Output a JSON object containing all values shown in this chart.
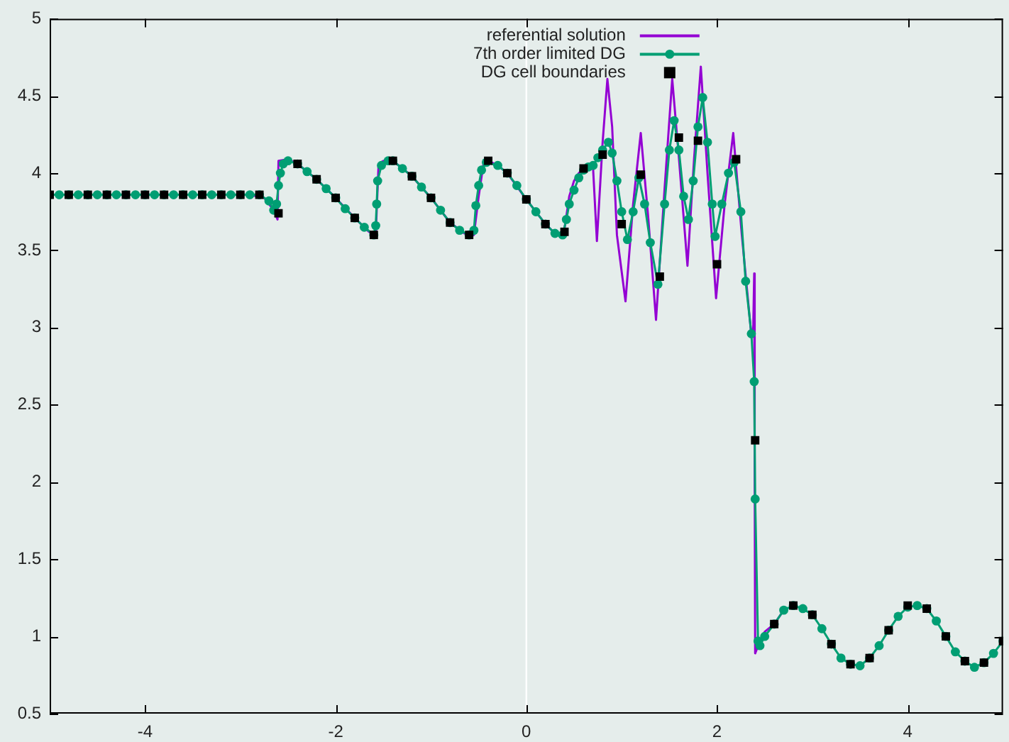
{
  "chart_data": {
    "type": "line",
    "xlim": [
      -5,
      5
    ],
    "xticks": [
      -4,
      -2,
      0,
      2,
      4
    ],
    "ylim": [
      0.5,
      5
    ],
    "yticks": [
      0.5,
      1,
      1.5,
      2,
      2.5,
      3,
      3.5,
      4,
      4.5,
      5
    ],
    "grid": false,
    "legend": "top",
    "line_style": "solid",
    "ref_lines": [
      {
        "axis": "x",
        "value": 0,
        "color": "#ffffff"
      }
    ],
    "series": [
      {
        "name": "referential solution",
        "marker": "none",
        "color": "#9400d3",
        "x": [
          -5,
          -2.9,
          -2.75,
          -2.65,
          -2.61,
          -2.6,
          -2.5,
          -2.4,
          -2.2,
          -2.0,
          -1.8,
          -1.65,
          -1.58,
          -1.55,
          -1.5,
          -1.4,
          -1.2,
          -1.0,
          -0.8,
          -0.65,
          -0.55,
          -0.5,
          -0.45,
          -0.4,
          -0.3,
          -0.2,
          0,
          0.2,
          0.3,
          0.36,
          0.4,
          0.45,
          0.5,
          0.55,
          0.6,
          0.7,
          0.74,
          0.8,
          0.85,
          0.9,
          0.95,
          1.04,
          1.12,
          1.2,
          1.28,
          1.36,
          1.45,
          1.53,
          1.6,
          1.69,
          1.76,
          1.83,
          1.9,
          1.99,
          2.08,
          2.17,
          2.26,
          2.36,
          2.38,
          2.39,
          2.395,
          2.4,
          2.45,
          2.5,
          2.6,
          2.7
        ],
        "values": [
          3.86,
          3.86,
          3.84,
          3.76,
          3.7,
          4.08,
          4.09,
          4.06,
          3.96,
          3.84,
          3.71,
          3.62,
          3.6,
          4.06,
          4.08,
          4.08,
          3.98,
          3.84,
          3.68,
          3.61,
          3.6,
          3.85,
          4.06,
          4.08,
          4.05,
          4.0,
          3.83,
          3.67,
          3.61,
          3.59,
          3.64,
          3.85,
          3.95,
          4.0,
          4.03,
          4.03,
          3.56,
          4.2,
          4.61,
          4.3,
          3.6,
          3.17,
          3.8,
          4.26,
          3.7,
          3.05,
          3.9,
          4.61,
          4.1,
          3.4,
          4.1,
          4.69,
          4.0,
          3.19,
          3.8,
          4.26,
          3.6,
          2.95,
          3.0,
          3.35,
          2.0,
          0.89,
          0.97,
          1.03,
          1.08,
          1.17
        ]
      },
      {
        "name": "7th order limited DG",
        "marker": "circle",
        "color": "#009e73",
        "x": [
          -5,
          -4.9,
          -4.8,
          -4.7,
          -4.6,
          -4.5,
          -4.4,
          -4.3,
          -4.2,
          -4.1,
          -4,
          -3.9,
          -3.8,
          -3.7,
          -3.6,
          -3.5,
          -3.4,
          -3.3,
          -3.2,
          -3.1,
          -3,
          -2.9,
          -2.8,
          -2.7,
          -2.65,
          -2.62,
          -2.6,
          -2.58,
          -2.55,
          -2.5,
          -2.4,
          -2.3,
          -2.2,
          -2.1,
          -2.0,
          -1.9,
          -1.8,
          -1.7,
          -1.6,
          -1.58,
          -1.57,
          -1.56,
          -1.52,
          -1.45,
          -1.4,
          -1.3,
          -1.2,
          -1.1,
          -1.0,
          -0.9,
          -0.8,
          -0.7,
          -0.6,
          -0.55,
          -0.53,
          -0.5,
          -0.47,
          -0.42,
          -0.3,
          -0.2,
          -0.1,
          0,
          0.1,
          0.2,
          0.3,
          0.38,
          0.42,
          0.45,
          0.5,
          0.55,
          0.6,
          0.65,
          0.7,
          0.75,
          0.8,
          0.86,
          0.9,
          0.95,
          1.0,
          1.06,
          1.12,
          1.18,
          1.24,
          1.3,
          1.38,
          1.45,
          1.5,
          1.55,
          1.6,
          1.65,
          1.7,
          1.75,
          1.8,
          1.85,
          1.9,
          1.95,
          1.98,
          2.05,
          2.12,
          2.18,
          2.25,
          2.3,
          2.36,
          2.39,
          2.4,
          2.43,
          2.45,
          2.5,
          2.6,
          2.7,
          2.8,
          2.9,
          3.0,
          3.1,
          3.2,
          3.3,
          3.4,
          3.5,
          3.6,
          3.7,
          3.8,
          3.9,
          4.0,
          4.1,
          4.2,
          4.3,
          4.4,
          4.5,
          4.6,
          4.7,
          4.8,
          4.9,
          5.0
        ],
        "values": [
          3.86,
          3.86,
          3.86,
          3.86,
          3.86,
          3.86,
          3.86,
          3.86,
          3.86,
          3.86,
          3.86,
          3.86,
          3.86,
          3.86,
          3.86,
          3.86,
          3.86,
          3.86,
          3.86,
          3.86,
          3.86,
          3.86,
          3.86,
          3.82,
          3.76,
          3.8,
          3.92,
          4.0,
          4.06,
          4.08,
          4.06,
          4.01,
          3.96,
          3.9,
          3.84,
          3.77,
          3.71,
          3.65,
          3.6,
          3.66,
          3.8,
          3.95,
          4.05,
          4.08,
          4.08,
          4.03,
          3.98,
          3.91,
          3.84,
          3.76,
          3.68,
          3.63,
          3.6,
          3.63,
          3.79,
          3.92,
          4.02,
          4.07,
          4.05,
          4.0,
          3.92,
          3.83,
          3.75,
          3.67,
          3.61,
          3.6,
          3.7,
          3.8,
          3.89,
          3.97,
          4.02,
          4.04,
          4.05,
          4.1,
          4.15,
          4.2,
          4.13,
          3.95,
          3.75,
          3.57,
          3.75,
          3.97,
          3.8,
          3.55,
          3.28,
          3.8,
          4.15,
          4.34,
          4.15,
          3.85,
          3.7,
          3.95,
          4.3,
          4.49,
          4.2,
          3.8,
          3.59,
          3.8,
          4.0,
          4.07,
          3.75,
          3.3,
          2.96,
          2.65,
          1.89,
          0.97,
          0.94,
          1.0,
          1.08,
          1.17,
          1.2,
          1.18,
          1.14,
          1.05,
          0.95,
          0.86,
          0.82,
          0.81,
          0.86,
          0.94,
          1.04,
          1.13,
          1.19,
          1.2,
          1.18,
          1.1,
          1.0,
          0.9,
          0.84,
          0.8,
          0.83,
          0.89,
          0.97
        ]
      },
      {
        "name": "DG cell boundaries",
        "type": "scatter",
        "marker": "square",
        "color": "#000000",
        "x": [
          -5,
          -4.8,
          -4.6,
          -4.4,
          -4.2,
          -4,
          -3.8,
          -3.6,
          -3.4,
          -3.2,
          -3,
          -2.8,
          -2.6,
          -2.4,
          -2.2,
          -2,
          -1.8,
          -1.6,
          -1.4,
          -1.2,
          -1,
          -0.8,
          -0.6,
          -0.4,
          -0.2,
          0,
          0.2,
          0.4,
          0.6,
          0.8,
          1,
          1.2,
          1.4,
          1.6,
          1.8,
          2,
          2.2,
          2.4,
          2.6,
          2.8,
          3,
          3.2,
          3.4,
          3.6,
          3.8,
          4,
          4.2,
          4.4,
          4.6,
          4.8,
          5
        ],
        "values": [
          3.86,
          3.86,
          3.86,
          3.86,
          3.86,
          3.86,
          3.86,
          3.86,
          3.86,
          3.86,
          3.86,
          3.86,
          3.74,
          4.06,
          3.96,
          3.84,
          3.71,
          3.6,
          4.08,
          3.98,
          3.84,
          3.68,
          3.6,
          4.08,
          4.0,
          3.83,
          3.67,
          3.62,
          4.03,
          4.12,
          3.67,
          3.99,
          3.33,
          4.23,
          4.21,
          3.41,
          4.09,
          2.27,
          1.08,
          1.2,
          1.14,
          0.95,
          0.82,
          0.86,
          1.04,
          1.2,
          1.18,
          1.0,
          0.84,
          0.83,
          0.97
        ]
      }
    ]
  }
}
